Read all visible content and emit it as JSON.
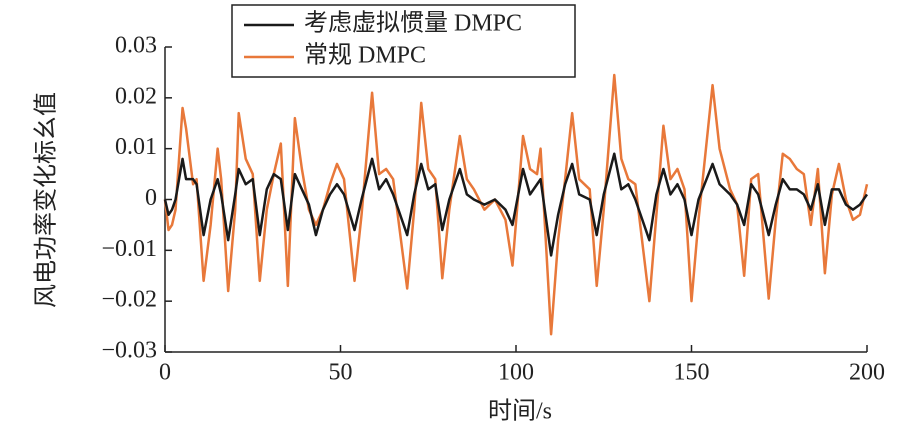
{
  "chart_data": {
    "type": "line",
    "xlabel": "时间/s",
    "ylabel": "风电功率变化标幺值",
    "xlim": [
      0,
      200
    ],
    "xticks": [
      0,
      50,
      100,
      150,
      200
    ],
    "ylim": [
      -0.03,
      0.03
    ],
    "yticks": [
      {
        "value": -0.03,
        "label": "−0.03"
      },
      {
        "value": -0.02,
        "label": "−0.02"
      },
      {
        "value": -0.01,
        "label": "−0.01"
      },
      0,
      0.01,
      0.02,
      0.03
    ],
    "x": [
      0,
      1,
      2,
      3,
      5,
      6,
      8,
      9,
      11,
      13,
      15,
      16,
      18,
      20,
      21,
      23,
      25,
      27,
      29,
      31,
      33,
      35,
      37,
      39,
      41,
      43,
      45,
      47,
      49,
      51,
      54,
      56,
      59,
      61,
      63,
      65,
      69,
      71,
      73,
      75,
      77,
      79,
      81,
      84,
      86,
      88,
      91,
      94,
      97,
      99,
      102,
      104,
      106,
      107,
      110,
      112,
      114,
      116,
      118,
      121,
      123,
      125,
      128,
      130,
      132,
      134,
      138,
      140,
      142,
      144,
      146,
      148,
      150,
      152,
      156,
      158,
      161,
      163,
      165,
      167,
      169,
      172,
      174,
      176,
      178,
      180,
      182,
      184,
      186,
      188,
      190,
      192,
      194,
      196,
      198,
      200
    ],
    "series": [
      {
        "name": "考虑虚拟惯量 DMPC",
        "color": "#1a1a1a",
        "values": [
          0,
          -0.003,
          -0.002,
          0,
          0.008,
          0.004,
          0.004,
          0.003,
          -0.007,
          0,
          0.004,
          0.001,
          -0.008,
          0.001,
          0.006,
          0.003,
          0.004,
          -0.007,
          0.002,
          0.005,
          0.004,
          -0.006,
          0.005,
          0.002,
          -0.001,
          -0.007,
          -0.002,
          0.001,
          0.003,
          0.001,
          -0.006,
          0,
          0.008,
          0.002,
          0.004,
          0.001,
          -0.007,
          0.001,
          0.007,
          0.002,
          0.003,
          -0.006,
          0,
          0.006,
          0.001,
          0,
          -0.001,
          0,
          -0.002,
          -0.005,
          0.006,
          0.001,
          0.003,
          0.004,
          -0.011,
          -0.003,
          0.003,
          0.007,
          0.001,
          0,
          -0.007,
          0.001,
          0.009,
          0.002,
          0.003,
          0,
          -0.008,
          0.001,
          0.006,
          0.001,
          0.003,
          0,
          -0.007,
          0,
          0.007,
          0.003,
          0.001,
          -0.001,
          -0.005,
          0.003,
          0.001,
          -0.007,
          -0.001,
          0.004,
          0.002,
          0.002,
          0.001,
          -0.002,
          0.003,
          -0.005,
          0.002,
          0.002,
          -0.001,
          -0.002,
          -0.001,
          0.001
        ]
      },
      {
        "name": "常规 DMPC",
        "color": "#e8783a",
        "values": [
          0,
          -0.006,
          -0.005,
          -0.002,
          0.018,
          0.014,
          0.003,
          0.004,
          -0.016,
          -0.005,
          0.01,
          0.004,
          -0.018,
          -0.002,
          0.017,
          0.008,
          0.005,
          -0.016,
          -0.002,
          0.005,
          0.011,
          -0.017,
          0.016,
          0.006,
          -0.002,
          -0.005,
          -0.002,
          0.003,
          0.007,
          0.004,
          -0.016,
          -0.003,
          0.021,
          0.005,
          0.006,
          0.004,
          -0.0175,
          -0.002,
          0.019,
          0.006,
          0.004,
          -0.0155,
          -0.002,
          0.0125,
          0.004,
          0.002,
          -0.002,
          0,
          -0.004,
          -0.013,
          0.0125,
          0.006,
          0.005,
          0.01,
          -0.0265,
          -0.008,
          0.004,
          0.017,
          0.004,
          0.002,
          -0.017,
          -0.002,
          0.0245,
          0.008,
          0.004,
          0.003,
          -0.02,
          -0.003,
          0.0145,
          0.004,
          0.006,
          0.002,
          -0.02,
          -0.004,
          0.0225,
          0.01,
          0.002,
          -0.001,
          -0.015,
          0.004,
          0.005,
          -0.0195,
          -0.004,
          0.009,
          0.008,
          0.006,
          0.005,
          -0.005,
          0.006,
          -0.0145,
          0.001,
          0.007,
          0,
          -0.004,
          -0.003,
          0.003
        ]
      }
    ]
  }
}
